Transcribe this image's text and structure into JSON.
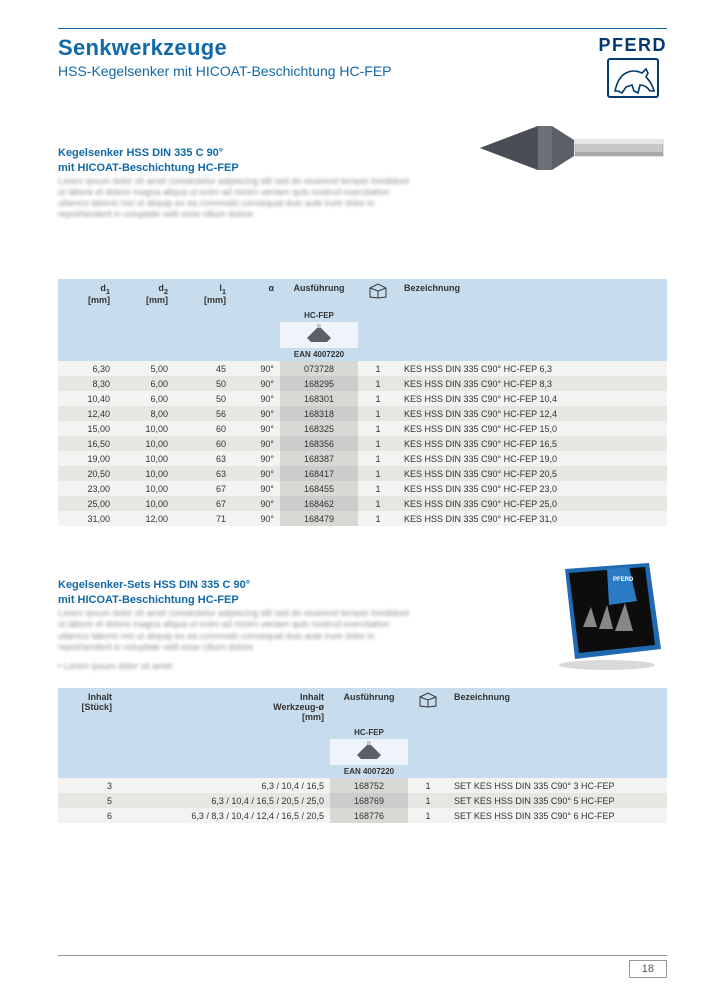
{
  "brand_color": "#1169a8",
  "dark_blue": "#003a70",
  "logo_text": "PFERD",
  "page_title": "Senkwerkzeuge",
  "page_subtitle": "HSS-Kegelsenker mit HICOAT-Beschichtung HC-FEP",
  "section1_heading_l1": "Kegelsenker HSS DIN 335 C 90°",
  "section1_heading_l2": "mit HICOAT-Beschichtung HC-FEP",
  "section2_heading_l1": "Kegelsenker-Sets HSS DIN 335 C 90°",
  "section2_heading_l2": "mit HICOAT-Beschichtung HC-FEP",
  "table1": {
    "cols": [
      "d₁\n[mm]",
      "d₂\n[mm]",
      "l₁\n[mm]",
      "α",
      "Ausführung",
      "",
      "Bezeichnung"
    ],
    "hc_label": "HC-FEP",
    "ean_label": "EAN 4007220",
    "rows": [
      [
        "6,30",
        "5,00",
        "45",
        "90°",
        "073728",
        "1",
        "KES HSS DIN 335 C90° HC-FEP 6,3"
      ],
      [
        "8,30",
        "6,00",
        "50",
        "90°",
        "168295",
        "1",
        "KES HSS DIN 335 C90° HC-FEP 8,3"
      ],
      [
        "10,40",
        "6,00",
        "50",
        "90°",
        "168301",
        "1",
        "KES HSS DIN 335 C90° HC-FEP 10,4"
      ],
      [
        "12,40",
        "8,00",
        "56",
        "90°",
        "168318",
        "1",
        "KES HSS DIN 335 C90° HC-FEP 12,4"
      ],
      [
        "15,00",
        "10,00",
        "60",
        "90°",
        "168325",
        "1",
        "KES HSS DIN 335 C90° HC-FEP 15,0"
      ],
      [
        "16,50",
        "10,00",
        "60",
        "90°",
        "168356",
        "1",
        "KES HSS DIN 335 C90° HC-FEP 16,5"
      ],
      [
        "19,00",
        "10,00",
        "63",
        "90°",
        "168387",
        "1",
        "KES HSS DIN 335 C90° HC-FEP 19,0"
      ],
      [
        "20,50",
        "10,00",
        "63",
        "90°",
        "168417",
        "1",
        "KES HSS DIN 335 C90° HC-FEP 20,5"
      ],
      [
        "23,00",
        "10,00",
        "67",
        "90°",
        "168455",
        "1",
        "KES HSS DIN 335 C90° HC-FEP 23,0"
      ],
      [
        "25,00",
        "10,00",
        "67",
        "90°",
        "168462",
        "1",
        "KES HSS DIN 335 C90° HC-FEP 25,0"
      ],
      [
        "31,00",
        "12,00",
        "71",
        "90°",
        "168479",
        "1",
        "KES HSS DIN 335 C90° HC-FEP 31,0"
      ]
    ]
  },
  "table2": {
    "cols": [
      "Inhalt\n[Stück]",
      "Inhalt\nWerkzeug-ø\n[mm]",
      "Ausführung",
      "",
      "Bezeichnung"
    ],
    "hc_label": "HC-FEP",
    "ean_label": "EAN 4007220",
    "rows": [
      [
        "3",
        "6,3 / 10,4 / 16,5",
        "168752",
        "1",
        "SET KES HSS DIN 335 C90° 3 HC-FEP"
      ],
      [
        "5",
        "6,3 / 10,4 / 16,5 / 20,5 / 25,0",
        "168769",
        "1",
        "SET KES HSS DIN 335 C90° 5 HC-FEP"
      ],
      [
        "6",
        "6,3 / 8,3 / 10,4 / 12,4 / 16,5 / 20,5",
        "168776",
        "1",
        "SET KES HSS DIN 335 C90° 6 HC-FEP"
      ]
    ]
  },
  "page_number": "18",
  "placeholder_text": "Lorem ipsum dolor sit amet consectetur adipiscing elit sed do eiusmod tempor incididunt ut labore et dolore magna aliqua ut enim ad minim veniam quis nostrud exercitation ullamco laboris nisi ut aliquip ex ea commodo consequat duis aute irure dolor in reprehenderit in voluptate velit esse cillum dolore"
}
